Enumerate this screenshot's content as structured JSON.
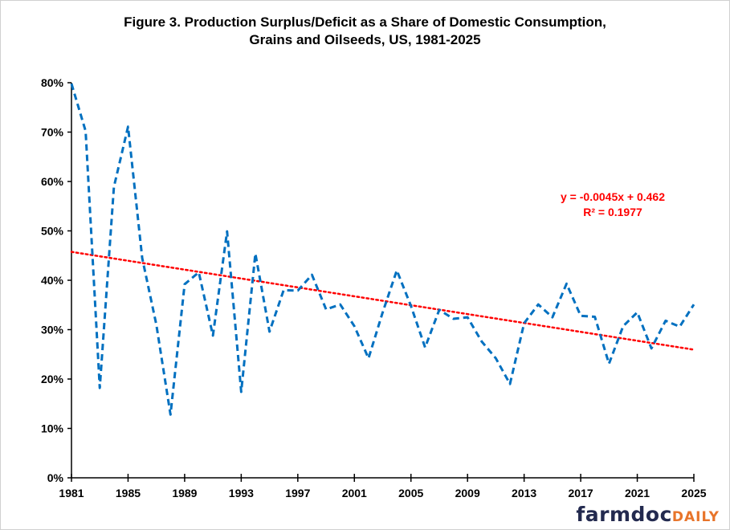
{
  "chart_data": {
    "type": "line",
    "title": "Figure 3.  Production Surplus/Deficit as a Share of Domestic Consumption,",
    "subtitle": "Grains and Oilseeds, US, 1981-2025",
    "xlabel": "",
    "ylabel": "",
    "x": [
      1981,
      1982,
      1983,
      1984,
      1985,
      1986,
      1987,
      1988,
      1989,
      1990,
      1991,
      1992,
      1993,
      1994,
      1995,
      1996,
      1997,
      1998,
      1999,
      2000,
      2001,
      2002,
      2003,
      2004,
      2005,
      2006,
      2007,
      2008,
      2009,
      2010,
      2011,
      2012,
      2013,
      2014,
      2015,
      2016,
      2017,
      2018,
      2019,
      2020,
      2021,
      2022,
      2023,
      2024,
      2025
    ],
    "series": [
      {
        "values": [
          79.8,
          70.2,
          18.2,
          58.9,
          71.1,
          44.5,
          31.0,
          12.8,
          39.2,
          41.6,
          28.8,
          49.9,
          17.4,
          45.4,
          29.6,
          38.0,
          37.9,
          41.1,
          34.1,
          35.1,
          30.7,
          24.2,
          33.5,
          42.0,
          34.8,
          26.4,
          34.0,
          32.2,
          32.5,
          27.6,
          24.2,
          19.0,
          31.3,
          35.1,
          32.5,
          39.3,
          32.8,
          32.6,
          23.1,
          30.7,
          33.5,
          26.2,
          31.8,
          30.6,
          35.1
        ],
        "color": "#0070c0",
        "style": "dashed"
      }
    ],
    "trendline": {
      "slope": -0.0045,
      "intercept": 0.462,
      "color": "#ff0000",
      "style": "dotted",
      "equation": "y = -0.0045x + 0.462",
      "r2": "R² = 0.1977"
    },
    "xlim": [
      1981,
      2025
    ],
    "ylim": [
      0,
      80
    ],
    "x_ticks": [
      "1981",
      "1985",
      "1989",
      "1993",
      "1997",
      "2001",
      "2005",
      "2009",
      "2013",
      "2017",
      "2021",
      "2025"
    ],
    "y_ticks": [
      "0%",
      "10%",
      "20%",
      "30%",
      "40%",
      "50%",
      "60%",
      "70%",
      "80%"
    ],
    "grid": false,
    "legend": "none"
  },
  "logo": {
    "part1": "farmdoc",
    "part2": "DAILY"
  }
}
